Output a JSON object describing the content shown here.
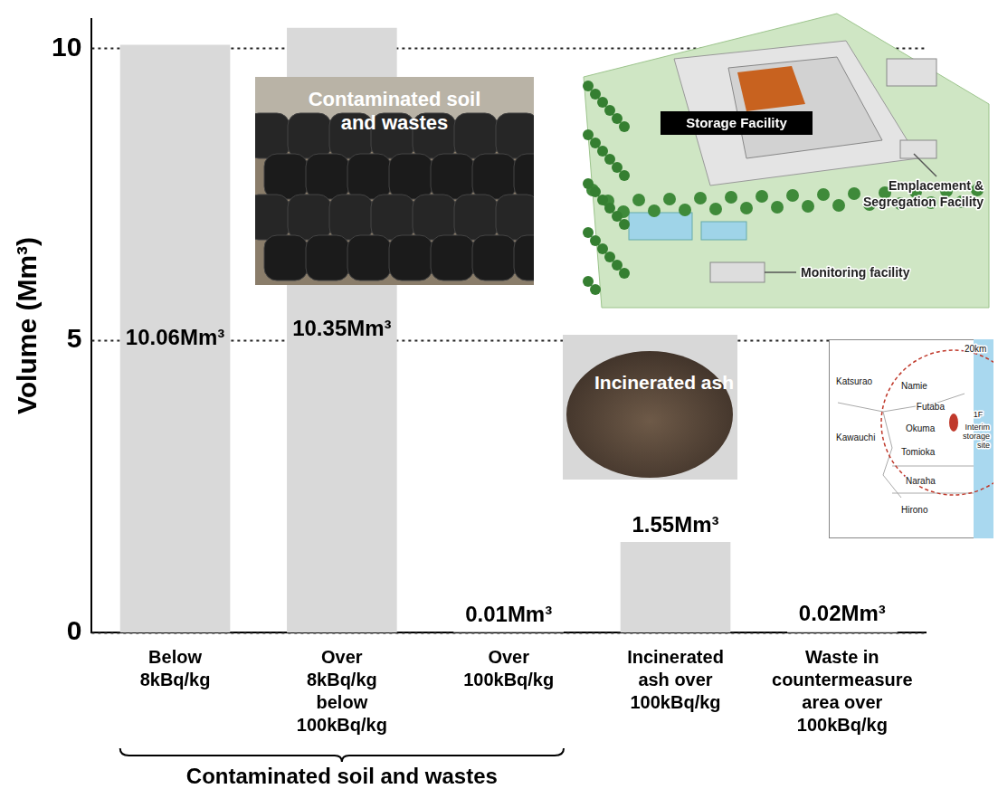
{
  "chart_data": {
    "type": "bar",
    "categories": [
      "Below 8kBq/kg",
      "Over 8kBq/kg below 100kBq/kg",
      "Over 100kBq/kg",
      "Incinerated ash over 100kBq/kg",
      "Waste in countermeasure area over 100kBq/kg"
    ],
    "values": [
      10.06,
      10.35,
      0.01,
      1.55,
      0.02
    ],
    "value_labels": [
      "10.06Mm³",
      "10.35Mm³",
      "0.01Mm³",
      "1.55Mm³",
      "0.02Mm³"
    ],
    "data_labels": true,
    "color": "#d9d9d9",
    "ylabel": "Volume (Mm³)",
    "ylim": [
      0,
      10.5
    ],
    "yticks": [
      0,
      5,
      10
    ],
    "grid": true,
    "groups": [
      {
        "label": "Contaminated soil and wastes",
        "categories": [
          "Below 8kBq/kg",
          "Over 8kBq/kg below 100kBq/kg",
          "Over 100kBq/kg"
        ]
      }
    ],
    "insets": [
      {
        "caption": "Contaminated soil and wastes"
      },
      {
        "labels": [
          "Storage Facility",
          "Emplacement & Segregation Facility",
          "Monitoring facility"
        ]
      },
      {
        "caption": "Incinerated ash"
      },
      {
        "labels": [
          "20km",
          "Katsurao",
          "Namie",
          "Futaba",
          "1F",
          "Okuma",
          "Interim storage site",
          "Kawauchi",
          "Tomioka",
          "Naraha",
          "Hirono"
        ]
      }
    ]
  }
}
